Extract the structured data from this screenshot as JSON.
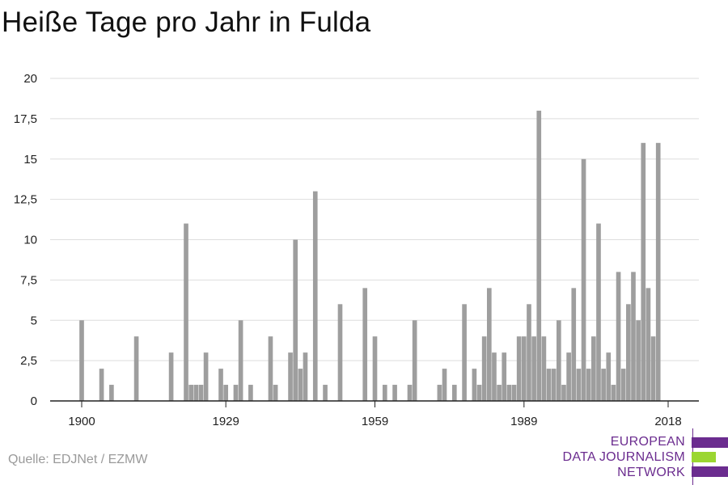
{
  "title": "Heiße Tage pro Jahr in Fulda",
  "source": "Quelle: EDJNet / EZMW",
  "logo": {
    "line1": "EUROPEAN",
    "line2": "DATA JOURNALISM",
    "line3": "NETWORK",
    "colors": {
      "purple": "#6b2c8f",
      "green": "#9bd631"
    }
  },
  "chart_data": {
    "type": "bar",
    "title": "Heiße Tage pro Jahr in Fulda",
    "xlabel": "",
    "ylabel": "",
    "xlim": [
      1900,
      2018
    ],
    "ylim": [
      0,
      20
    ],
    "yticks": [
      0,
      2.5,
      5,
      7.5,
      10,
      12.5,
      15,
      17.5,
      20
    ],
    "ytick_labels": [
      "0",
      "2,5",
      "5",
      "7,5",
      "10",
      "12,5",
      "15",
      "17,5",
      "20"
    ],
    "xticks": [
      1900,
      1929,
      1959,
      1989,
      2018
    ],
    "xtick_labels": [
      "1900",
      "1929",
      "1959",
      "1989",
      "2018"
    ],
    "grid": true,
    "bar_color": "#9e9e9e",
    "x": [
      1900,
      1904,
      1906,
      1911,
      1918,
      1921,
      1922,
      1923,
      1924,
      1925,
      1928,
      1929,
      1931,
      1932,
      1934,
      1938,
      1939,
      1942,
      1943,
      1944,
      1945,
      1947,
      1949,
      1952,
      1957,
      1959,
      1961,
      1963,
      1966,
      1967,
      1972,
      1973,
      1975,
      1977,
      1979,
      1980,
      1981,
      1982,
      1983,
      1984,
      1985,
      1986,
      1987,
      1988,
      1989,
      1990,
      1991,
      1992,
      1993,
      1994,
      1995,
      1996,
      1997,
      1998,
      1999,
      2000,
      2001,
      2002,
      2003,
      2004,
      2005,
      2006,
      2007,
      2008,
      2009,
      2010,
      2011,
      2012,
      2013,
      2014,
      2015,
      2016,
      2017,
      2018
    ],
    "values": [
      5,
      2,
      1,
      4,
      3,
      11,
      1,
      1,
      1,
      3,
      2,
      1,
      1,
      5,
      1,
      4,
      1,
      3,
      10,
      2,
      3,
      13,
      1,
      6,
      7,
      4,
      1,
      1,
      1,
      5,
      1,
      2,
      1,
      6,
      2,
      1,
      4,
      7,
      3,
      1,
      3,
      1,
      1,
      4,
      4,
      6,
      4,
      18,
      4,
      2,
      2,
      5,
      1,
      3,
      7,
      2,
      15,
      2,
      4,
      11,
      2,
      3,
      1,
      8,
      2,
      6,
      8,
      5,
      16,
      7,
      4,
      16,
      0,
      0
    ]
  }
}
